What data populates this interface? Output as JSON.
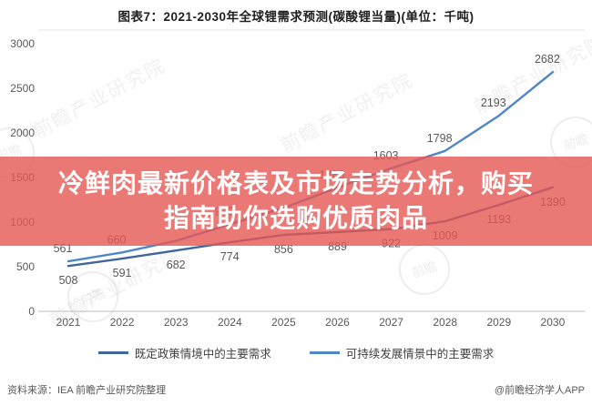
{
  "title": "图表7：2021-2030年全球锂需求预测(碳酸锂当量)(单位：千吨)",
  "overlay": {
    "line1": "冷鲜肉最新价格表及市场走势分析，购买",
    "line2": "指南助你选购优质肉品",
    "bg_color": "#e55652",
    "bg_opacity": 0.8,
    "text_color": "#ffffff"
  },
  "footer": {
    "source": "资料来源：IEA 前瞻产业研究院整理",
    "watermark_handle": "@前瞻经济学人APP"
  },
  "watermark": {
    "text": "前瞻产业研究院",
    "logo_text": "前瞻"
  },
  "chart_data": {
    "type": "line",
    "title": "图表7：2021-2030年全球锂需求预测(碳酸锂当量)(单位：千吨)",
    "unit": "千吨",
    "categories": [
      "2021",
      "2022",
      "2023",
      "2024",
      "2025",
      "2026",
      "2027",
      "2028",
      "2029",
      "2030"
    ],
    "y_ticks": [
      0,
      500,
      1000,
      1500,
      2000,
      2500,
      3000
    ],
    "ylim": [
      0,
      3000
    ],
    "grid": false,
    "legend_position": "bottom",
    "axis_color": "#c9c9c9",
    "tick_label_color": "#595959",
    "data_label_color": "#595959",
    "series": [
      {
        "name": "既定政策情境中的主要需求",
        "color": "#41669c",
        "values": [
          508,
          591,
          682,
          774,
          856,
          889,
          922,
          1009,
          1193,
          1390
        ],
        "labels": [
          "508",
          "591",
          "682",
          "774",
          "856",
          "889",
          "922",
          "1009",
          "1193",
          "1390"
        ],
        "label_side": "below"
      },
      {
        "name": "可持续发展情景中的主要需求",
        "color": "#4f86c6",
        "values": [
          561,
          660,
          790,
          975,
          1160,
          1386,
          1603,
          1798,
          2193,
          2682
        ],
        "labels": [
          "561",
          "660",
          "",
          "975",
          "",
          "1386",
          "1603",
          "1798",
          "2193",
          "2682"
        ],
        "label_side": "above"
      }
    ]
  }
}
